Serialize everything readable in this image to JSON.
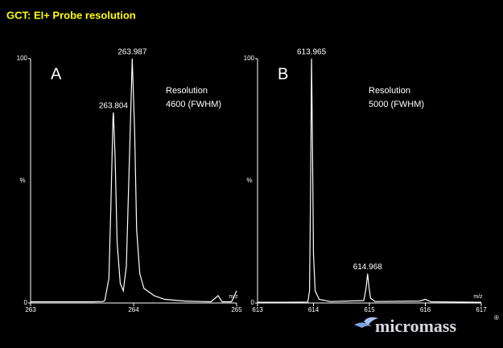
{
  "title": "GCT: EI+  Probe resolution",
  "logo": "micromass",
  "chart_data": [
    {
      "type": "line",
      "panel_label": "A",
      "annotation": [
        "Resolution",
        "4600 (FWHM)"
      ],
      "x": [
        263,
        263.3,
        263.6,
        263.7,
        263.72,
        263.76,
        263.78,
        263.8,
        263.804,
        263.82,
        263.84,
        263.87,
        263.9,
        263.93,
        263.96,
        263.987,
        264.01,
        264.03,
        264.06,
        264.1,
        264.2,
        264.3,
        264.5,
        264.75,
        264.82,
        264.86,
        264.95,
        264.98,
        265
      ],
      "series": [
        {
          "color": "#ffffff",
          "values": [
            0.5,
            0.5,
            0.5,
            0.6,
            1,
            10,
            40,
            76,
            78,
            60,
            25,
            8,
            5,
            15,
            60,
            100,
            70,
            30,
            12,
            6,
            3,
            1.5,
            0.8,
            0.5,
            3,
            0.5,
            0.5,
            3,
            5
          ]
        }
      ],
      "xlim": [
        263,
        265
      ],
      "xticks": [
        263,
        264,
        265
      ],
      "ylim": [
        0,
        100
      ],
      "yticks": [
        0,
        100
      ],
      "ylabel": "%",
      "xlabel": "m/z",
      "peaks": [
        {
          "x": 263.804,
          "y": 78
        },
        {
          "x": 263.987,
          "y": 100
        }
      ]
    },
    {
      "type": "line",
      "panel_label": "B",
      "annotation": [
        "Resolution",
        "5000 (FWHM)"
      ],
      "x": [
        613,
        613.5,
        613.9,
        613.93,
        613.95,
        613.965,
        613.98,
        614,
        614.03,
        614.1,
        614.3,
        614.9,
        614.94,
        614.968,
        614.99,
        615.02,
        615.1,
        615.9,
        616,
        616.1,
        617
      ],
      "series": [
        {
          "color": "#ffffff",
          "values": [
            0.3,
            0.3,
            0.4,
            5,
            50,
            100,
            70,
            20,
            5,
            1.5,
            0.6,
            1,
            6,
            12,
            7,
            2,
            0.6,
            0.8,
            1.5,
            0.5,
            0.3
          ]
        }
      ],
      "xlim": [
        613,
        617
      ],
      "xticks": [
        613,
        614,
        615,
        616,
        617
      ],
      "ylim": [
        0,
        100
      ],
      "yticks": [
        0,
        100
      ],
      "ylabel": "%",
      "xlabel": "m/z",
      "peaks": [
        {
          "x": 613.965,
          "y": 100
        },
        {
          "x": 614.968,
          "y": 12
        }
      ]
    }
  ]
}
